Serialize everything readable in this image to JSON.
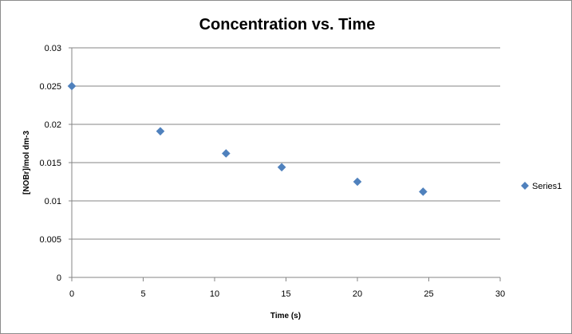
{
  "chart_data": {
    "type": "scatter",
    "title": "Concentration vs. Time",
    "xlabel": "Time (s)",
    "ylabel": "[NOBr]/mol dm-3",
    "xlim": [
      0,
      30
    ],
    "ylim": [
      0,
      0.03
    ],
    "x_ticks": [
      0,
      5,
      10,
      15,
      20,
      25,
      30
    ],
    "y_ticks": [
      "0",
      "0.005",
      "0.01",
      "0.015",
      "0.02",
      "0.025",
      "0.03"
    ],
    "grid": "horizontal",
    "legend_position": "right",
    "series": [
      {
        "name": "Series1",
        "color": "#4f81bd",
        "marker": "diamond",
        "x": [
          0,
          6.2,
          10.8,
          14.7,
          20,
          24.6
        ],
        "y": [
          0.025,
          0.0191,
          0.0162,
          0.0144,
          0.0125,
          0.0112
        ]
      }
    ]
  }
}
